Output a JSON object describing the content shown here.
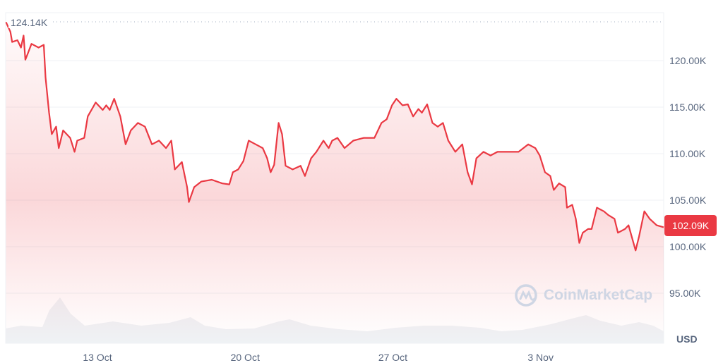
{
  "chart_data": {
    "type": "area",
    "ylabel": "USD",
    "yticks": [
      "95.00K",
      "100.00K",
      "105.00K",
      "110.00K",
      "115.00K",
      "120.00K"
    ],
    "ytick_values": [
      95,
      100,
      105,
      110,
      115,
      120
    ],
    "ylim": [
      91,
      125
    ],
    "xticks": [
      "13 Oct",
      "20 Oct",
      "27 Oct",
      "3 Nov"
    ],
    "grid": true,
    "max_label": "124.14K",
    "current_label": "102.09K",
    "line_color": "#ea3943",
    "watermark": "CoinMarketCap",
    "value_unit": "K USD",
    "points": [
      [
        "Oct 8 16:00",
        124.14
      ],
      [
        "Oct 8 21:00",
        123.1
      ],
      [
        "Oct 8 23:00",
        122.0
      ],
      [
        "Oct 9 05:00",
        122.2
      ],
      [
        "Oct 9 09:00",
        121.4
      ],
      [
        "Oct 9 12:00",
        122.7
      ],
      [
        "Oct 9 14:00",
        120.1
      ],
      [
        "Oct 9 17:00",
        120.8
      ],
      [
        "Oct 9 21:00",
        121.8
      ],
      [
        "Oct 10 05:00",
        121.4
      ],
      [
        "Oct 10 11:00",
        121.7
      ],
      [
        "Oct 10 13:00",
        118.2
      ],
      [
        "Oct 10 17:00",
        114.4
      ],
      [
        "Oct 10 20:00",
        112.1
      ],
      [
        "Oct 11 01:00",
        112.9
      ],
      [
        "Oct 11 04:00",
        110.6
      ],
      [
        "Oct 11 09:00",
        112.5
      ],
      [
        "Oct 11 17:00",
        111.7
      ],
      [
        "Oct 11 22:00",
        110.2
      ],
      [
        "Oct 12 01:00",
        111.4
      ],
      [
        "Oct 12 09:00",
        111.7
      ],
      [
        "Oct 12 13:00",
        114.0
      ],
      [
        "Oct 12 22:00",
        115.5
      ],
      [
        "Oct 13 06:00",
        114.7
      ],
      [
        "Oct 13 10:00",
        115.2
      ],
      [
        "Oct 13 14:00",
        114.7
      ],
      [
        "Oct 13 19:00",
        115.9
      ],
      [
        "Oct 14 02:00",
        114.0
      ],
      [
        "Oct 14 08:00",
        111.0
      ],
      [
        "Oct 14 14:00",
        112.5
      ],
      [
        "Oct 14 22:00",
        113.3
      ],
      [
        "Oct 15 06:00",
        112.9
      ],
      [
        "Oct 15 14:00",
        111.0
      ],
      [
        "Oct 15 22:00",
        111.4
      ],
      [
        "Oct 16 06:00",
        110.6
      ],
      [
        "Oct 16 12:00",
        111.4
      ],
      [
        "Oct 16 16:00",
        108.3
      ],
      [
        "Oct 17 00:00",
        109.1
      ],
      [
        "Oct 17 06:00",
        106.4
      ],
      [
        "Oct 17 08:00",
        104.8
      ],
      [
        "Oct 17 14:00",
        106.4
      ],
      [
        "Oct 17 22:00",
        107.0
      ],
      [
        "Oct 18 10:00",
        107.2
      ],
      [
        "Oct 18 22:00",
        106.8
      ],
      [
        "Oct 19 06:00",
        106.7
      ],
      [
        "Oct 19 10:00",
        108.0
      ],
      [
        "Oct 19 16:00",
        108.3
      ],
      [
        "Oct 19 22:00",
        109.2
      ],
      [
        "Oct 20 04:00",
        111.4
      ],
      [
        "Oct 20 12:00",
        111.0
      ],
      [
        "Oct 20 20:00",
        110.6
      ],
      [
        "Oct 21 01:00",
        109.5
      ],
      [
        "Oct 21 05:00",
        108.0
      ],
      [
        "Oct 21 09:00",
        108.8
      ],
      [
        "Oct 21 14:00",
        113.3
      ],
      [
        "Oct 21 18:00",
        112.1
      ],
      [
        "Oct 21 22:00",
        108.7
      ],
      [
        "Oct 22 06:00",
        108.3
      ],
      [
        "Oct 22 15:00",
        108.7
      ],
      [
        "Oct 22 20:00",
        107.6
      ],
      [
        "Oct 23 03:00",
        109.5
      ],
      [
        "Oct 23 09:00",
        110.2
      ],
      [
        "Oct 23 17:00",
        111.4
      ],
      [
        "Oct 23 23:00",
        110.6
      ],
      [
        "Oct 24 03:00",
        111.4
      ],
      [
        "Oct 24 09:00",
        111.7
      ],
      [
        "Oct 24 17:00",
        110.6
      ],
      [
        "Oct 25 03:00",
        111.4
      ],
      [
        "Oct 25 15:00",
        111.7
      ],
      [
        "Oct 26 03:00",
        111.7
      ],
      [
        "Oct 26 11:00",
        113.3
      ],
      [
        "Oct 26 17:00",
        113.7
      ],
      [
        "Oct 26 23:00",
        115.2
      ],
      [
        "Oct 27 04:00",
        115.9
      ],
      [
        "Oct 27 11:00",
        115.2
      ],
      [
        "Oct 27 17:00",
        115.3
      ],
      [
        "Oct 27 23:00",
        114.0
      ],
      [
        "Oct 28 05:00",
        114.8
      ],
      [
        "Oct 28 09:00",
        114.4
      ],
      [
        "Oct 28 15:00",
        115.3
      ],
      [
        "Oct 28 21:00",
        113.3
      ],
      [
        "Oct 29 03:00",
        112.9
      ],
      [
        "Oct 29 09:00",
        113.3
      ],
      [
        "Oct 29 15:00",
        111.4
      ],
      [
        "Oct 29 23:00",
        110.2
      ],
      [
        "Oct 30 07:00",
        111.0
      ],
      [
        "Oct 30 13:00",
        108.0
      ],
      [
        "Oct 30 18:00",
        106.7
      ],
      [
        "Oct 30 23:00",
        109.5
      ],
      [
        "Oct 31 07:00",
        110.2
      ],
      [
        "Oct 31 15:00",
        109.8
      ],
      [
        "Oct 31 23:00",
        110.2
      ],
      [
        "Nov 1 11:00",
        110.2
      ],
      [
        "Nov 1 23:00",
        110.2
      ],
      [
        "Nov 2 10:00",
        111.0
      ],
      [
        "Nov 2 18:00",
        110.6
      ],
      [
        "Nov 2 23:00",
        109.8
      ],
      [
        "Nov 3 05:00",
        108.0
      ],
      [
        "Nov 3 11:00",
        107.6
      ],
      [
        "Nov 3 15:00",
        106.1
      ],
      [
        "Nov 3 21:00",
        106.8
      ],
      [
        "Nov 4 04:00",
        106.4
      ],
      [
        "Nov 4 06:00",
        104.2
      ],
      [
        "Nov 4 12:00",
        104.5
      ],
      [
        "Nov 4 16:00",
        103.0
      ],
      [
        "Nov 4 20:00",
        100.4
      ],
      [
        "Nov 5 00:00",
        101.5
      ],
      [
        "Nov 5 06:00",
        101.9
      ],
      [
        "Nov 5 10:00",
        101.9
      ],
      [
        "Nov 5 16:00",
        104.2
      ],
      [
        "Nov 6 00:00",
        103.8
      ],
      [
        "Nov 6 05:00",
        103.4
      ],
      [
        "Nov 6 12:00",
        103.0
      ],
      [
        "Nov 6 16:00",
        101.5
      ],
      [
        "Nov 7 00:00",
        101.9
      ],
      [
        "Nov 7 04:00",
        102.3
      ],
      [
        "Nov 7 12:00",
        99.6
      ],
      [
        "Nov 7 16:00",
        101.1
      ],
      [
        "Nov 7 22:00",
        103.8
      ],
      [
        "Nov 8 04:00",
        103.0
      ],
      [
        "Nov 8 12:00",
        102.3
      ],
      [
        "Nov 8 20:00",
        102.09
      ]
    ]
  }
}
